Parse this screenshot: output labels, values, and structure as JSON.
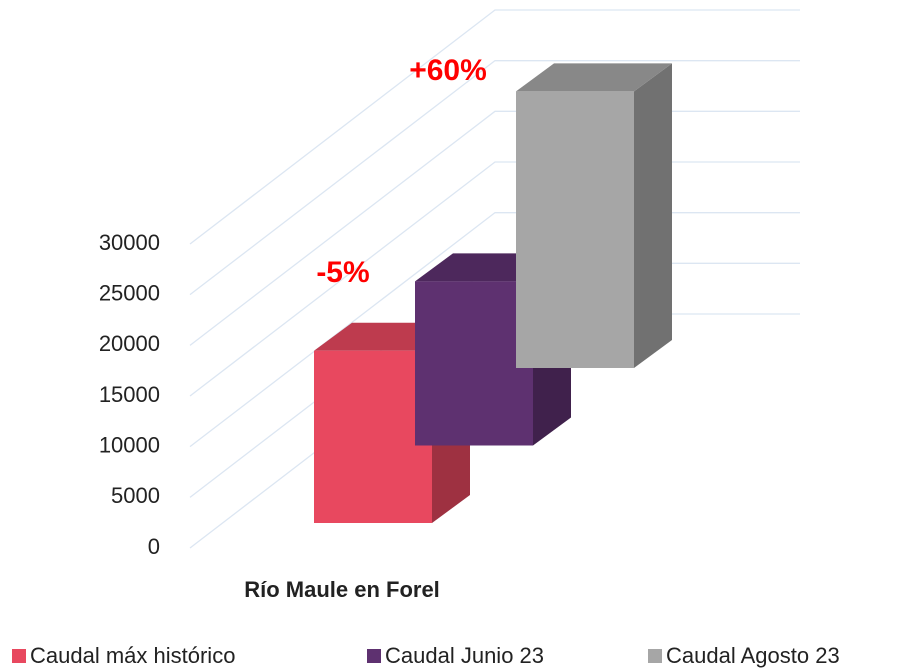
{
  "chart_data": {
    "type": "bar3d",
    "categories": [
      "Río Maule en Forel"
    ],
    "series": [
      {
        "name": "Caudal máx histórico",
        "color": "#e8485f",
        "values": [
          17000
        ]
      },
      {
        "name": "Caudal Junio 23",
        "color": "#5e3170",
        "values": [
          16200
        ]
      },
      {
        "name": "Caudal Agosto 23",
        "color": "#a6a6a6",
        "values": [
          27300
        ]
      }
    ],
    "annotations": [
      "-5%",
      "+60%"
    ],
    "ylim": [
      0,
      30000
    ],
    "yticks": [
      0,
      5000,
      10000,
      15000,
      20000,
      25000,
      30000
    ],
    "grid": true
  }
}
